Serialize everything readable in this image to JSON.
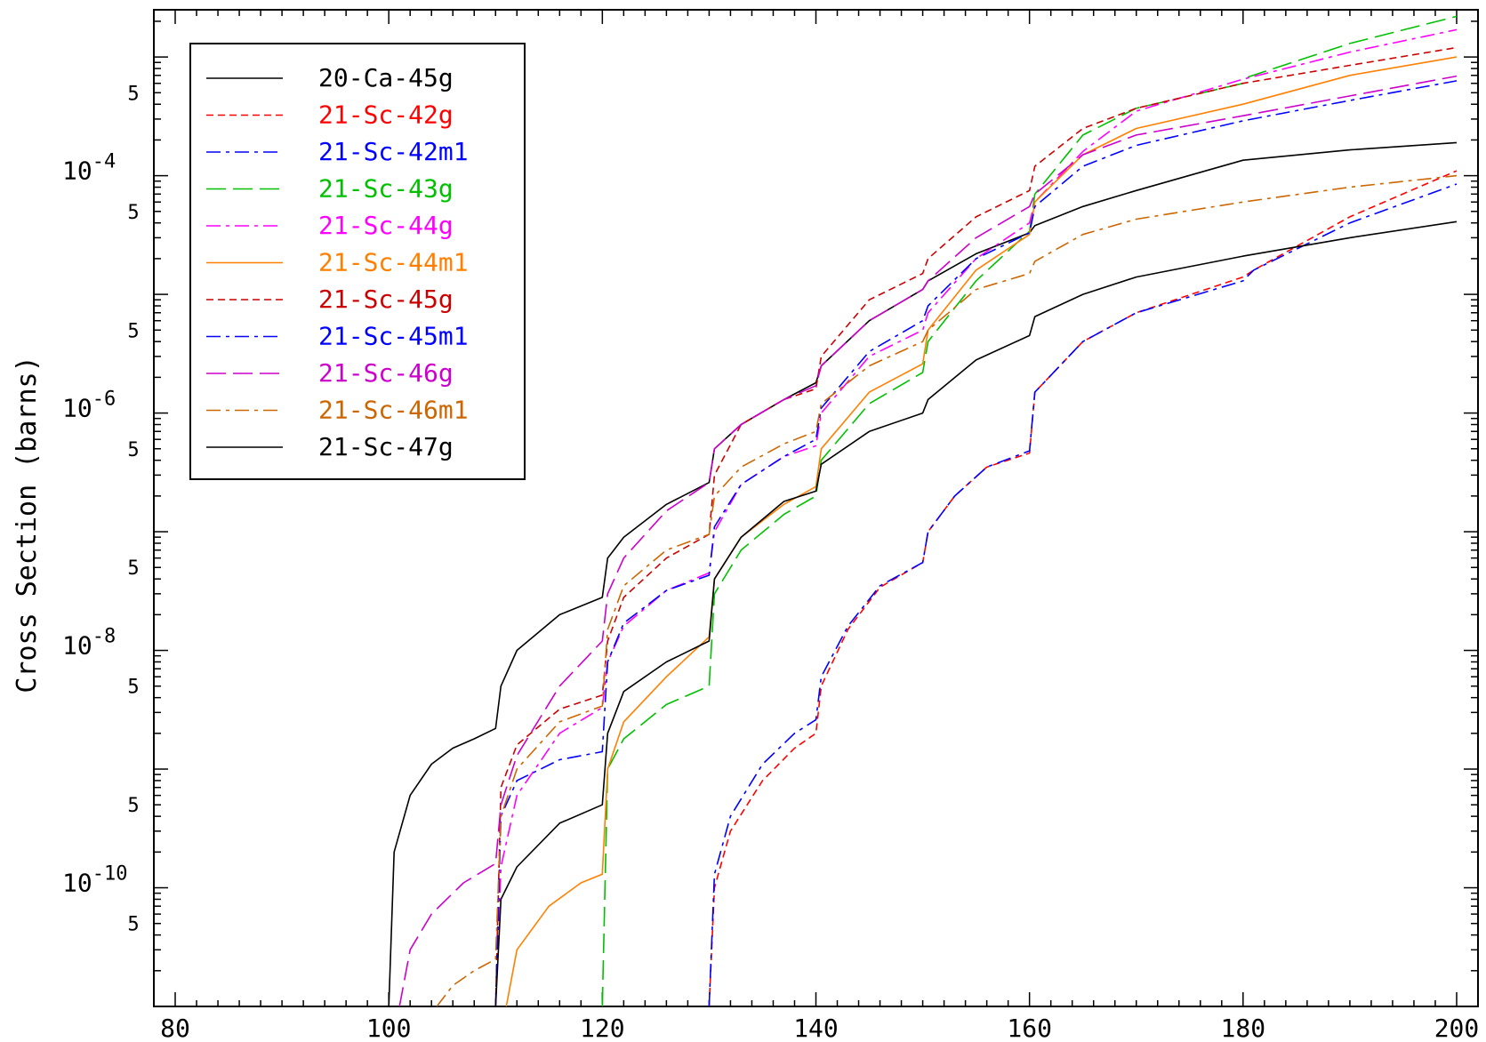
{
  "chart_data": {
    "type": "line",
    "title": "",
    "xlabel": "",
    "ylabel": "Cross Section (barns)",
    "xlim": [
      78,
      202
    ],
    "ylim": [
      1e-11,
      0.0025
    ],
    "yscale": "log",
    "xticks": [
      80,
      100,
      120,
      140,
      160,
      180,
      200
    ],
    "xtick_labels": [
      "80",
      "100",
      "120",
      "140",
      "160",
      "180",
      "200"
    ],
    "ytick_major": [
      {
        "value": 1e-10,
        "base": "10",
        "exp": "-10"
      },
      {
        "value": 1e-08,
        "base": "10",
        "exp": "-8"
      },
      {
        "value": 1e-06,
        "base": "10",
        "exp": "-6"
      },
      {
        "value": 0.0001,
        "base": "10",
        "exp": "-4"
      }
    ],
    "ytick_five_label": "5",
    "ytick_five_values": [
      5e-11,
      5e-10,
      5e-09,
      5e-08,
      5e-07,
      5e-06,
      5e-05,
      0.0005
    ],
    "grid": false,
    "legend_position": "top-left",
    "series": [
      {
        "name": "20-Ca-45g",
        "color": "#000000",
        "dash": "solid",
        "x": [
          100,
          100.5,
          102,
          104,
          106,
          108,
          110,
          110.5,
          112,
          116,
          120,
          120.5,
          122,
          126,
          130,
          130.5,
          133,
          137,
          140,
          140.5,
          145,
          150,
          150.5,
          155,
          160,
          160.5,
          165,
          170,
          180,
          190,
          200
        ],
        "y": [
          1e-11,
          2e-10,
          6e-10,
          1.1e-09,
          1.5e-09,
          1.8e-09,
          2.2e-09,
          5e-09,
          1e-08,
          2e-08,
          2.8e-08,
          6e-08,
          9e-08,
          1.7e-07,
          2.6e-07,
          5e-07,
          8e-07,
          1.3e-06,
          1.8e-06,
          2.5e-06,
          6e-06,
          1.1e-05,
          1.3e-05,
          2.2e-05,
          3.3e-05,
          3.8e-05,
          5.5e-05,
          7.5e-05,
          0.000135,
          0.000165,
          0.00019
        ]
      },
      {
        "name": "21-Sc-42g",
        "color": "#ff0000",
        "dash": "dash",
        "x": [
          130,
          130.5,
          132,
          135,
          138,
          140,
          140.5,
          143,
          146,
          150,
          150.5,
          153,
          156,
          160,
          160.5,
          165,
          170,
          180,
          181,
          190,
          200
        ],
        "y": [
          1e-11,
          1e-10,
          3e-10,
          8e-10,
          1.5e-09,
          2e-09,
          5e-09,
          1.5e-08,
          3.4e-08,
          5.5e-08,
          1e-07,
          2e-07,
          3.5e-07,
          4.6e-07,
          1.5e-06,
          4e-06,
          7e-06,
          1.4e-05,
          1.6e-05,
          4.5e-05,
          0.00011
        ]
      },
      {
        "name": "21-Sc-42m1",
        "color": "#0000ff",
        "dash": "dashdot",
        "x": [
          130,
          130.5,
          132,
          135,
          138,
          140,
          140.5,
          143,
          146,
          150,
          150.5,
          153,
          156,
          160,
          160.5,
          165,
          170,
          180,
          181,
          190,
          200
        ],
        "y": [
          1e-11,
          1.3e-10,
          4e-10,
          1.1e-09,
          2e-09,
          2.6e-09,
          6e-09,
          1.6e-08,
          3.5e-08,
          5.5e-08,
          1e-07,
          2e-07,
          3.5e-07,
          4.8e-07,
          1.5e-06,
          4e-06,
          7e-06,
          1.3e-05,
          1.6e-05,
          4e-05,
          8.5e-05
        ]
      },
      {
        "name": "21-Sc-43g",
        "color": "#00c000",
        "dash": "longdash",
        "x": [
          120,
          120.5,
          122,
          126,
          130,
          130.5,
          133,
          137,
          140,
          140.5,
          145,
          150,
          150.5,
          155,
          160,
          160.5,
          165,
          170,
          180,
          180.5,
          190,
          200
        ],
        "y": [
          1e-11,
          1e-09,
          1.8e-09,
          3.5e-09,
          5e-09,
          3e-08,
          7e-08,
          1.4e-07,
          2e-07,
          4e-07,
          1.2e-06,
          2.2e-06,
          4e-06,
          1.3e-05,
          3.4e-05,
          7e-05,
          0.00022,
          0.00037,
          0.0006,
          0.00068,
          0.0013,
          0.0022
        ]
      },
      {
        "name": "21-Sc-44g",
        "color": "#ff00ff",
        "dash": "dashdot",
        "x": [
          110,
          110.5,
          112,
          116,
          120,
          120.5,
          122,
          126,
          130,
          130.5,
          133,
          137,
          140,
          140.5,
          145,
          150,
          150.5,
          155,
          160,
          160.5,
          165,
          170,
          180,
          190,
          200
        ],
        "y": [
          1e-11,
          1.5e-10,
          6e-10,
          2e-09,
          3.3e-09,
          8e-09,
          1.6e-08,
          3.2e-08,
          4.5e-08,
          1e-07,
          2.5e-07,
          4.3e-07,
          5.3e-07,
          1e-06,
          3e-06,
          5e-06,
          7e-06,
          2e-05,
          4e-05,
          6e-05,
          0.00016,
          0.00035,
          0.00065,
          0.0011,
          0.0017
        ]
      },
      {
        "name": "21-Sc-44m1",
        "color": "#ff8000",
        "dash": "solid",
        "x": [
          111,
          112,
          115,
          118,
          120,
          120.5,
          122,
          126,
          130,
          130.5,
          133,
          137,
          140,
          140.5,
          145,
          150,
          150.5,
          155,
          160,
          160.5,
          165,
          170,
          180,
          190,
          200
        ],
        "y": [
          1e-11,
          3e-11,
          7e-11,
          1.1e-10,
          1.3e-10,
          1e-09,
          2.5e-09,
          6e-09,
          1.3e-08,
          4e-08,
          9e-08,
          1.7e-07,
          2.4e-07,
          5e-07,
          1.5e-06,
          2.6e-06,
          5e-06,
          1.6e-05,
          3.2e-05,
          6e-05,
          0.00015,
          0.00025,
          0.0004,
          0.0007,
          0.001
        ]
      },
      {
        "name": "21-Sc-45g",
        "color": "#cc0000",
        "dash": "dash",
        "x": [
          110,
          110.5,
          112,
          116,
          120,
          120.5,
          122,
          126,
          130,
          130.5,
          133,
          137,
          140,
          140.5,
          145,
          150,
          150.5,
          155,
          160,
          160.5,
          165,
          170,
          180,
          190,
          200
        ],
        "y": [
          1e-11,
          7e-10,
          1.6e-09,
          3.2e-09,
          4.2e-09,
          1.2e-08,
          2.8e-08,
          6e-08,
          9.5e-08,
          3e-07,
          8e-07,
          1.3e-06,
          1.6e-06,
          3e-06,
          9e-06,
          1.5e-05,
          2e-05,
          4.5e-05,
          7.5e-05,
          0.00012,
          0.00025,
          0.00037,
          0.0006,
          0.00085,
          0.0012
        ]
      },
      {
        "name": "21-Sc-45m1",
        "color": "#0000ff",
        "dash": "dashdot",
        "x": [
          110,
          110.5,
          112,
          116,
          120,
          120.5,
          122,
          126,
          130,
          130.5,
          133,
          137,
          140,
          140.5,
          145,
          150,
          150.5,
          155,
          160,
          160.5,
          165,
          170,
          180,
          190,
          200
        ],
        "y": [
          1e-11,
          4e-10,
          8e-10,
          1.2e-09,
          1.4e-09,
          8e-09,
          1.7e-08,
          3.2e-08,
          4.3e-08,
          1.1e-07,
          2.5e-07,
          4.3e-07,
          6e-07,
          1.1e-06,
          3.3e-06,
          6e-06,
          8e-06,
          2e-05,
          3.3e-05,
          5.5e-05,
          0.00012,
          0.00018,
          0.00029,
          0.00043,
          0.00063
        ]
      },
      {
        "name": "21-Sc-46g",
        "color": "#cc00cc",
        "dash": "longdash",
        "x": [
          101,
          102,
          104,
          107,
          110,
          110.5,
          112,
          116,
          120,
          120.5,
          122,
          126,
          130,
          130.5,
          133,
          137,
          140,
          140.5,
          145,
          150,
          150.5,
          155,
          160,
          160.5,
          165,
          170,
          180,
          190,
          200
        ],
        "y": [
          1e-11,
          3e-11,
          6e-11,
          1.1e-10,
          1.6e-10,
          5e-10,
          1.3e-09,
          5e-09,
          1.2e-08,
          3e-08,
          6e-08,
          1.5e-07,
          2.6e-07,
          5e-07,
          8e-07,
          1.3e-06,
          1.7e-06,
          2.5e-06,
          6e-06,
          1.1e-05,
          1.3e-05,
          3e-05,
          5.5e-05,
          7e-05,
          0.00015,
          0.00022,
          0.00032,
          0.00047,
          0.00069
        ]
      },
      {
        "name": "21-Sc-46m1",
        "color": "#cc6600",
        "dash": "dashdot",
        "x": [
          104.5,
          106,
          108,
          110,
          110.5,
          112,
          116,
          120,
          120.5,
          122,
          126,
          130,
          130.5,
          133,
          137,
          140,
          140.5,
          145,
          150,
          150.5,
          155,
          160,
          160.5,
          165,
          170,
          180,
          190,
          200
        ],
        "y": [
          1e-11,
          1.5e-11,
          2e-11,
          2.5e-11,
          4e-10,
          1e-09,
          2.5e-09,
          3.4e-09,
          1.5e-08,
          3.5e-08,
          7e-08,
          9.5e-08,
          2e-07,
          3.5e-07,
          5.5e-07,
          7e-07,
          1.2e-06,
          2.5e-06,
          4e-06,
          5e-06,
          1.1e-05,
          1.5e-05,
          1.9e-05,
          3.2e-05,
          4.3e-05,
          6e-05,
          8e-05,
          0.0001
        ]
      },
      {
        "name": "21-Sc-47g",
        "color": "#000000",
        "dash": "solid",
        "x": [
          110,
          110.5,
          112,
          116,
          120,
          120.5,
          122,
          126,
          130,
          130.5,
          133,
          137,
          140,
          140.5,
          145,
          150,
          150.5,
          155,
          160,
          160.5,
          165,
          170,
          180,
          190,
          200
        ],
        "y": [
          1e-11,
          8e-11,
          1.5e-10,
          3.5e-10,
          5e-10,
          2e-09,
          4.5e-09,
          8e-09,
          1.2e-08,
          4e-08,
          9e-08,
          1.8e-07,
          2.2e-07,
          3.7e-07,
          7e-07,
          1e-06,
          1.3e-06,
          2.8e-06,
          4.5e-06,
          6.5e-06,
          1e-05,
          1.4e-05,
          2.1e-05,
          3e-05,
          4.1e-05
        ]
      }
    ]
  }
}
